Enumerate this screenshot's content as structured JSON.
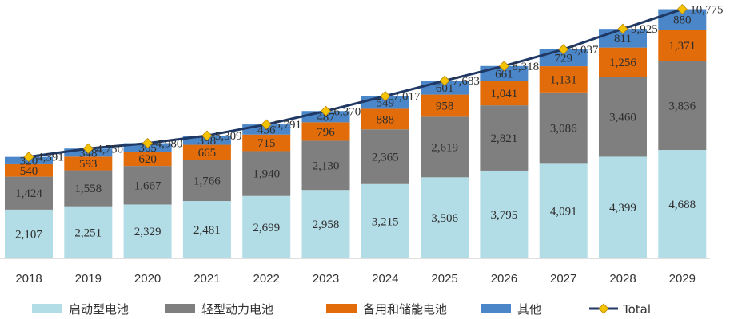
{
  "chart_data": {
    "type": "bar",
    "stacked": true,
    "categories": [
      "2018",
      "2019",
      "2020",
      "2021",
      "2022",
      "2023",
      "2024",
      "2025",
      "2026",
      "2027",
      "2028",
      "2029"
    ],
    "series": [
      {
        "name": "启动型电池",
        "color": "#b3dde6",
        "values": [
          2107,
          2251,
          2329,
          2481,
          2699,
          2958,
          3215,
          3506,
          3795,
          4091,
          4399,
          4688
        ],
        "labels": [
          "2,107",
          "2,251",
          "2,329",
          "2,481",
          "2,699",
          "2,958",
          "3,215",
          "3,506",
          "3,795",
          "4,091",
          "4,399",
          "4,688"
        ]
      },
      {
        "name": "轻型动力电池",
        "color": "#7f7f7f",
        "values": [
          1424,
          1558,
          1667,
          1766,
          1940,
          2130,
          2365,
          2619,
          2821,
          3086,
          3460,
          3836
        ],
        "labels": [
          "1,424",
          "1,558",
          "1,667",
          "1,766",
          "1,940",
          "2,130",
          "2,365",
          "2,619",
          "2,821",
          "3,086",
          "3,460",
          "3,836"
        ]
      },
      {
        "name": "备用和储能电池",
        "color": "#e36c0a",
        "values": [
          540,
          593,
          620,
          665,
          715,
          796,
          888,
          958,
          1041,
          1131,
          1256,
          1371
        ],
        "labels": [
          "540",
          "593",
          "620",
          "665",
          "715",
          "796",
          "888",
          "958",
          "1,041",
          "1,131",
          "1,256",
          "1,371"
        ]
      },
      {
        "name": "其他",
        "color": "#4a86c8",
        "values": [
          320,
          348,
          365,
          398,
          436,
          487,
          549,
          601,
          661,
          729,
          811,
          880
        ],
        "labels": [
          "320",
          "348",
          "365",
          "398",
          "436",
          "487",
          "549",
          "601",
          "661",
          "729",
          "811",
          "880"
        ]
      }
    ],
    "line": {
      "name": "Total",
      "color": "#1f3864",
      "marker_color": "#f5c200",
      "values": [
        4391,
        4750,
        4980,
        5309,
        5791,
        6370,
        7017,
        7683,
        8318,
        9037,
        9925,
        10775
      ],
      "labels": [
        "4,391",
        "4,750",
        "4,980",
        "5,309",
        "5,791",
        "6,370",
        "7,017",
        "7,683",
        "8,318",
        "9,037",
        "9,925",
        "10,775"
      ]
    },
    "ylim": [
      0,
      11000
    ],
    "title": "",
    "xlabel": "",
    "ylabel": "",
    "grid": false,
    "legend_position": "bottom"
  }
}
